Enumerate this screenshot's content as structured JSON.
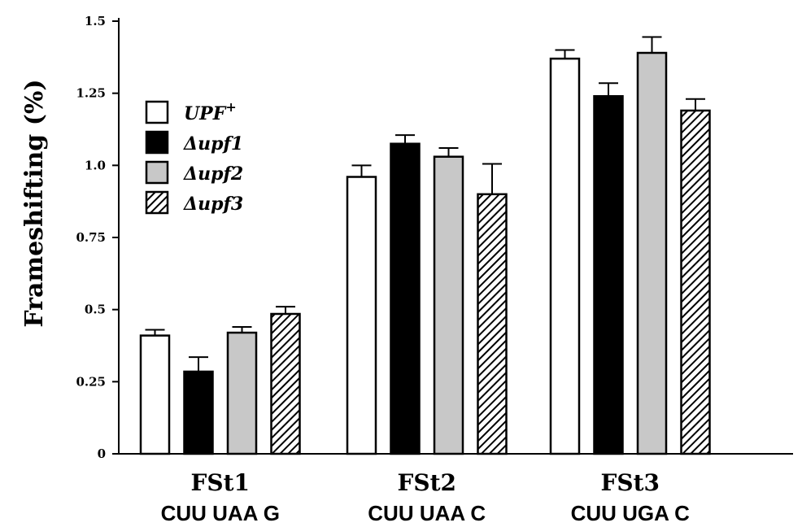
{
  "chart_data": {
    "type": "bar",
    "ylabel": "Frameshifting (%)",
    "ylim": [
      0,
      1.5
    ],
    "yticks": [
      0,
      0.25,
      0.5,
      0.75,
      1.0,
      1.25,
      1.5
    ],
    "ytick_labels": [
      "0",
      "0.25",
      "0.5",
      "0.75",
      "1.0",
      "1.25",
      "1.5"
    ],
    "categories": [
      {
        "name": "FSt1",
        "sub": "CUU UAA G"
      },
      {
        "name": "FSt2",
        "sub": "CUU UAA C"
      },
      {
        "name": "FSt3",
        "sub": "CUU UGA C"
      }
    ],
    "series": [
      {
        "name": "UPF",
        "superscript": "+",
        "style": "white",
        "values": [
          0.41,
          0.96,
          1.37
        ],
        "errors": [
          0.02,
          0.04,
          0.03
        ]
      },
      {
        "name": "Δupf1",
        "superscript": "",
        "style": "black",
        "values": [
          0.285,
          1.075,
          1.24
        ],
        "errors": [
          0.05,
          0.03,
          0.045
        ]
      },
      {
        "name": "Δupf2",
        "superscript": "",
        "style": "gray",
        "values": [
          0.42,
          1.03,
          1.39
        ],
        "errors": [
          0.02,
          0.03,
          0.055
        ]
      },
      {
        "name": "Δupf3",
        "superscript": "",
        "style": "hatched",
        "values": [
          0.485,
          0.9,
          1.19
        ],
        "errors": [
          0.025,
          0.105,
          0.04
        ]
      }
    ],
    "legend_position": "top-left",
    "grid": false,
    "colors": {
      "white": "#ffffff",
      "black": "#000000",
      "gray": "#c8c8c8",
      "edge": "#000000"
    }
  }
}
